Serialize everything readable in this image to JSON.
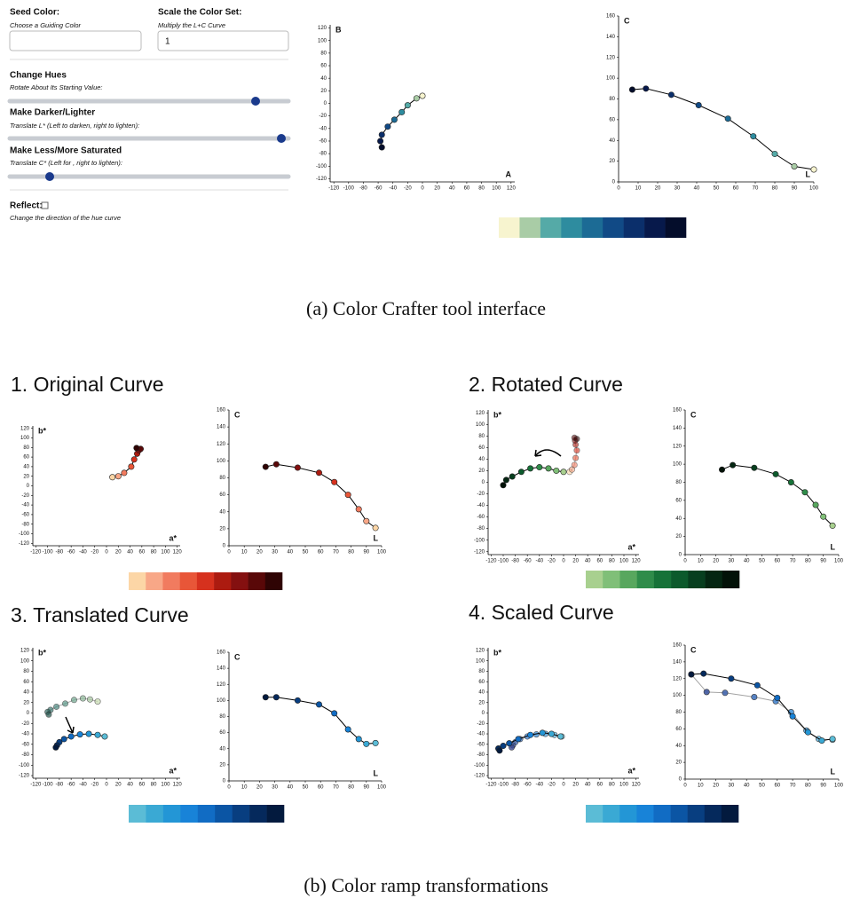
{
  "interface": {
    "controls": {
      "seed": {
        "label": "Seed Color:",
        "hint": "Choose a Guiding Color"
      },
      "scale": {
        "label": "Scale the Color Set:",
        "hint": "Multiply the L+C Curve",
        "value": 1
      },
      "hues": {
        "label": "Change Hues",
        "hint": "Rotate About Its Starting Value:"
      },
      "lightness": {
        "label": "Make Darker/Lighter",
        "hint": "Translate L* (Left to darken, right to lighten):"
      },
      "saturation": {
        "label": "Make Less/More Saturated",
        "hint": "Translate C* (Left for , right to lighten):"
      },
      "reflect": {
        "label": "Reflect:",
        "hint": "Change the direction of the hue curve"
      }
    },
    "ab_chart": {
      "type": "scatter",
      "x_label": "A",
      "y_label": "B",
      "xlim": [
        -125,
        125
      ],
      "ylim": [
        -125,
        125
      ],
      "xticks": [
        -120,
        -100,
        -80,
        -60,
        -40,
        -20,
        0,
        20,
        40,
        60,
        80,
        100,
        120
      ],
      "yticks": [
        -120,
        -100,
        -80,
        -60,
        -40,
        -20,
        0,
        20,
        40,
        60,
        80,
        100,
        120
      ],
      "series": [
        {
          "x": [
            0,
            -8,
            -20,
            -28,
            -38,
            -47,
            -55,
            -57,
            -55
          ],
          "y": [
            12,
            8,
            -3,
            -14,
            -26,
            -37,
            -50,
            -60,
            -70
          ],
          "colors": [
            "#f7f4cf",
            "#a9cca6",
            "#55aaa7",
            "#2e8c9f",
            "#1c6b95",
            "#114a86",
            "#0b2f6b",
            "#07194b",
            "#040d2b"
          ],
          "line_color": "#000000",
          "opacity": 1
        }
      ]
    },
    "lc_chart": {
      "type": "line",
      "x_label": "L",
      "y_label": "C",
      "xlim": [
        0,
        100
      ],
      "ylim": [
        0,
        160
      ],
      "xticks": [
        0,
        10,
        20,
        30,
        40,
        50,
        60,
        70,
        80,
        90,
        100
      ],
      "yticks": [
        0,
        20,
        40,
        60,
        80,
        100,
        120,
        140,
        160
      ],
      "series": [
        {
          "x": [
            100,
            90,
            80,
            69,
            56,
            41,
            27,
            14,
            7
          ],
          "y": [
            12,
            15,
            27,
            44,
            61,
            74,
            84,
            90,
            89
          ],
          "colors": [
            "#f7f4cf",
            "#a9cca6",
            "#55aaa7",
            "#2e8c9f",
            "#1c6b95",
            "#114a86",
            "#0b2f6b",
            "#07194b",
            "#040d2b"
          ],
          "line_color": "#000000",
          "opacity": 1
        }
      ]
    },
    "swatch": [
      "#f7f4cf",
      "#a9cca6",
      "#55aaa7",
      "#2e8c9f",
      "#1c6b95",
      "#114a86",
      "#0b2f6b",
      "#07194b",
      "#040d2b"
    ],
    "caption": "(a) Color Crafter tool interface"
  },
  "panels": [
    {
      "title": "1. Original Curve",
      "ab_chart": {
        "type": "scatter",
        "x_label": "a*",
        "y_label": "b*",
        "xlim": [
          -125,
          125
        ],
        "ylim": [
          -125,
          125
        ],
        "xticks": [
          -120,
          -100,
          -80,
          -60,
          -40,
          -20,
          0,
          20,
          40,
          60,
          80,
          100,
          120
        ],
        "yticks": [
          -120,
          -100,
          -80,
          -60,
          -40,
          -20,
          0,
          20,
          40,
          60,
          80,
          100,
          120
        ],
        "series": [
          {
            "x": [
              10,
              20,
              30,
              42,
              47,
              52,
              55,
              58,
              51
            ],
            "y": [
              18,
              20,
              27,
              40,
              55,
              67,
              74,
              77,
              79
            ],
            "colors": [
              "#fcd6a6",
              "#f8a787",
              "#f17b5f",
              "#e85638",
              "#d6311e",
              "#ac1b10",
              "#841010",
              "#590808",
              "#2f0404"
            ],
            "line_color": "#000000",
            "opacity": 1
          }
        ]
      },
      "lc_chart": {
        "type": "line",
        "x_label": "L",
        "y_label": "C",
        "xlim": [
          0,
          100
        ],
        "ylim": [
          0,
          160
        ],
        "xticks": [
          0,
          10,
          20,
          30,
          40,
          50,
          60,
          70,
          80,
          90,
          100
        ],
        "yticks": [
          0,
          20,
          40,
          60,
          80,
          100,
          120,
          140,
          160
        ],
        "series": [
          {
            "x": [
              96,
              90,
              85,
              78,
              69,
              59,
              45,
              31,
              24
            ],
            "y": [
              21,
              29,
              43,
              60,
              75,
              86,
              92,
              96,
              93
            ],
            "colors": [
              "#fcd6a6",
              "#f8a787",
              "#f17b5f",
              "#e85638",
              "#d6311e",
              "#ac1b10",
              "#841010",
              "#590808",
              "#2f0404"
            ],
            "line_color": "#000000",
            "opacity": 1
          }
        ]
      },
      "swatch": [
        "#fcd6a6",
        "#f8a787",
        "#f17b5f",
        "#e85638",
        "#d6311e",
        "#ac1b10",
        "#841010",
        "#590808",
        "#2f0404"
      ]
    },
    {
      "title": "2. Rotated Curve",
      "ab_chart": {
        "type": "scatter",
        "x_label": "a*",
        "y_label": "b*",
        "xlim": [
          -125,
          125
        ],
        "ylim": [
          -125,
          125
        ],
        "xticks": [
          -120,
          -100,
          -80,
          -60,
          -40,
          -20,
          0,
          20,
          40,
          60,
          80,
          100,
          120
        ],
        "yticks": [
          -120,
          -100,
          -80,
          -60,
          -40,
          -20,
          0,
          20,
          40,
          60,
          80,
          100,
          120
        ],
        "series": [
          {
            "x": [
              10,
              14,
              18,
              20,
              22,
              20,
              19,
              18,
              22
            ],
            "y": [
              18,
              22,
              30,
              42,
              55,
              65,
              72,
              77,
              75
            ],
            "colors": [
              "#fcd6a6",
              "#f8a787",
              "#f17b5f",
              "#e85638",
              "#d6311e",
              "#ac1b10",
              "#841010",
              "#590808",
              "#2f0404"
            ],
            "line_color": "#888888",
            "opacity": 0.6
          },
          {
            "x": [
              0,
              -12,
              -25,
              -40,
              -55,
              -70,
              -85,
              -95,
              -100
            ],
            "y": [
              18,
              20,
              24,
              26,
              24,
              18,
              10,
              4,
              -5
            ],
            "colors": [
              "#a8d08f",
              "#80bf78",
              "#58a75e",
              "#2f8c4a",
              "#167238",
              "#0c5a2c",
              "#073f1f",
              "#042612",
              "#021208"
            ],
            "line_color": "#000000",
            "opacity": 1
          }
        ]
      },
      "lc_chart": {
        "type": "line",
        "x_label": "L",
        "y_label": "C",
        "xlim": [
          0,
          100
        ],
        "ylim": [
          0,
          160
        ],
        "xticks": [
          0,
          10,
          20,
          30,
          40,
          50,
          60,
          70,
          80,
          90,
          100
        ],
        "yticks": [
          0,
          20,
          40,
          60,
          80,
          100,
          120,
          140,
          160
        ],
        "series": [
          {
            "x": [
              96,
              90,
              85,
              78,
              69,
              59,
              45,
              31,
              24
            ],
            "y": [
              32,
              42,
              55,
              69,
              80,
              89,
              96,
              99,
              94
            ],
            "colors": [
              "#a8d08f",
              "#80bf78",
              "#58a75e",
              "#2f8c4a",
              "#167238",
              "#0c5a2c",
              "#073f1f",
              "#042612",
              "#021208"
            ],
            "line_color": "#000000",
            "opacity": 1
          }
        ]
      },
      "swatch": [
        "#a8d08f",
        "#80bf78",
        "#58a75e",
        "#2f8c4a",
        "#167238",
        "#0c5a2c",
        "#073f1f",
        "#042612",
        "#021208"
      ]
    },
    {
      "title": "3. Translated Curve",
      "ab_chart": {
        "type": "scatter",
        "x_label": "a*",
        "y_label": "b*",
        "xlim": [
          -125,
          125
        ],
        "ylim": [
          -125,
          125
        ],
        "xticks": [
          -120,
          -100,
          -80,
          -60,
          -40,
          -20,
          0,
          20,
          40,
          60,
          80,
          100,
          120
        ],
        "yticks": [
          -120,
          -100,
          -80,
          -60,
          -40,
          -20,
          0,
          20,
          40,
          60,
          80,
          100,
          120
        ],
        "series": [
          {
            "x": [
              -15,
              -28,
              -40,
              -55,
              -70,
              -85,
              -95,
              -100,
              -98
            ],
            "y": [
              22,
              26,
              28,
              25,
              18,
              12,
              6,
              2,
              -3
            ],
            "colors": [
              "#c8dcb0",
              "#a8c8a0",
              "#8cb898",
              "#70a890",
              "#5a9888",
              "#4a8880",
              "#3c7870",
              "#306860",
              "#285850"
            ],
            "line_color": "#888888",
            "opacity": 0.7
          },
          {
            "x": [
              -3,
              -15,
              -30,
              -45,
              -60,
              -72,
              -80,
              -84,
              -86
            ],
            "y": [
              -45,
              -42,
              -40,
              -41,
              -45,
              -50,
              -56,
              -62,
              -66
            ],
            "colors": [
              "#5bbcd6",
              "#3aa9d4",
              "#2396d6",
              "#1883d8",
              "#116cc4",
              "#0b55a4",
              "#083e80",
              "#05295c",
              "#031a3e"
            ],
            "line_color": "#000000",
            "opacity": 1
          }
        ]
      },
      "lc_chart": {
        "type": "line",
        "x_label": "L",
        "y_label": "C",
        "xlim": [
          0,
          100
        ],
        "ylim": [
          0,
          160
        ],
        "xticks": [
          0,
          10,
          20,
          30,
          40,
          50,
          60,
          70,
          80,
          90,
          100
        ],
        "yticks": [
          0,
          20,
          40,
          60,
          80,
          100,
          120,
          140,
          160
        ],
        "series": [
          {
            "x": [
              96,
              90,
              85,
              78,
              69,
              59,
              45,
              31,
              24
            ],
            "y": [
              47,
              46,
              52,
              64,
              84,
              95,
              100,
              104,
              104
            ],
            "colors": [
              "#5bbcd6",
              "#3aa9d4",
              "#2396d6",
              "#1883d8",
              "#116cc4",
              "#0b55a4",
              "#083e80",
              "#05295c",
              "#031a3e"
            ],
            "line_color": "#000000",
            "opacity": 1
          }
        ]
      },
      "swatch": [
        "#5bbcd6",
        "#3aa9d4",
        "#2396d6",
        "#1883d8",
        "#116cc4",
        "#0b55a4",
        "#083e80",
        "#05295c",
        "#031a3e"
      ]
    },
    {
      "title": "4. Scaled Curve",
      "ab_chart": {
        "type": "scatter",
        "x_label": "a*",
        "y_label": "b*",
        "xlim": [
          -125,
          125
        ],
        "ylim": [
          -125,
          125
        ],
        "xticks": [
          -120,
          -100,
          -80,
          -60,
          -40,
          -20,
          0,
          20,
          40,
          60,
          80,
          100,
          120
        ],
        "yticks": [
          -120,
          -100,
          -80,
          -60,
          -40,
          -20,
          0,
          20,
          40,
          60,
          80,
          100,
          120
        ],
        "series": [
          {
            "x": [
              -3,
              -15,
              -30,
              -45,
              -60,
              -72,
              -80,
              -84,
              -86
            ],
            "y": [
              -45,
              -42,
              -40,
              -41,
              -45,
              -50,
              -56,
              -62,
              -66
            ],
            "colors": [
              "#8ccbe0",
              "#6cbbe0",
              "#58a8e0",
              "#4a98dc",
              "#4a88d0",
              "#4878c0",
              "#4468b0",
              "#4058a0",
              "#3c4890"
            ],
            "line_color": "#888888",
            "opacity": 0.8
          },
          {
            "x": [
              -5,
              -20,
              -35,
              -55,
              -75,
              -90,
              -100,
              -108,
              -106
            ],
            "y": [
              -45,
              -40,
              -38,
              -42,
              -50,
              -58,
              -63,
              -68,
              -72
            ],
            "colors": [
              "#5bbcd6",
              "#3aa9d4",
              "#2396d6",
              "#1883d8",
              "#116cc4",
              "#0b55a4",
              "#083e80",
              "#05295c",
              "#031a3e"
            ],
            "line_color": "#000000",
            "opacity": 1
          }
        ]
      },
      "lc_chart": {
        "type": "line",
        "x_label": "L",
        "y_label": "C",
        "xlim": [
          0,
          100
        ],
        "ylim": [
          0,
          160
        ],
        "xticks": [
          0,
          10,
          20,
          30,
          40,
          50,
          60,
          70,
          80,
          90,
          100
        ],
        "yticks": [
          0,
          20,
          40,
          60,
          80,
          100,
          120,
          140,
          160
        ],
        "series": [
          {
            "x": [
              96,
              87,
              79,
              69,
              59,
              45,
              26,
              14,
              4
            ],
            "y": [
              47,
              48,
              58,
              80,
              93,
              98,
              103,
              104,
              125
            ],
            "colors": [
              "#8ccbe0",
              "#6cbbe0",
              "#58a8e0",
              "#4a98dc",
              "#4a88d0",
              "#4878c0",
              "#4468b0",
              "#4058a0",
              "#3c4890"
            ],
            "line_color": "#999999",
            "opacity": 0.9
          },
          {
            "x": [
              96,
              89,
              80,
              70,
              60,
              47,
              30,
              12,
              4
            ],
            "y": [
              48,
              46,
              56,
              75,
              97,
              112,
              120,
              126,
              125
            ],
            "colors": [
              "#5bbcd6",
              "#3aa9d4",
              "#2396d6",
              "#1883d8",
              "#116cc4",
              "#0b55a4",
              "#083e80",
              "#05295c",
              "#031a3e"
            ],
            "line_color": "#000000",
            "opacity": 1
          }
        ]
      },
      "swatch": [
        "#5bbcd6",
        "#3aa9d4",
        "#2396d6",
        "#1883d8",
        "#116cc4",
        "#0b55a4",
        "#083e80",
        "#05295c",
        "#031a3e"
      ]
    }
  ],
  "caption": "(b) Color ramp transformations"
}
